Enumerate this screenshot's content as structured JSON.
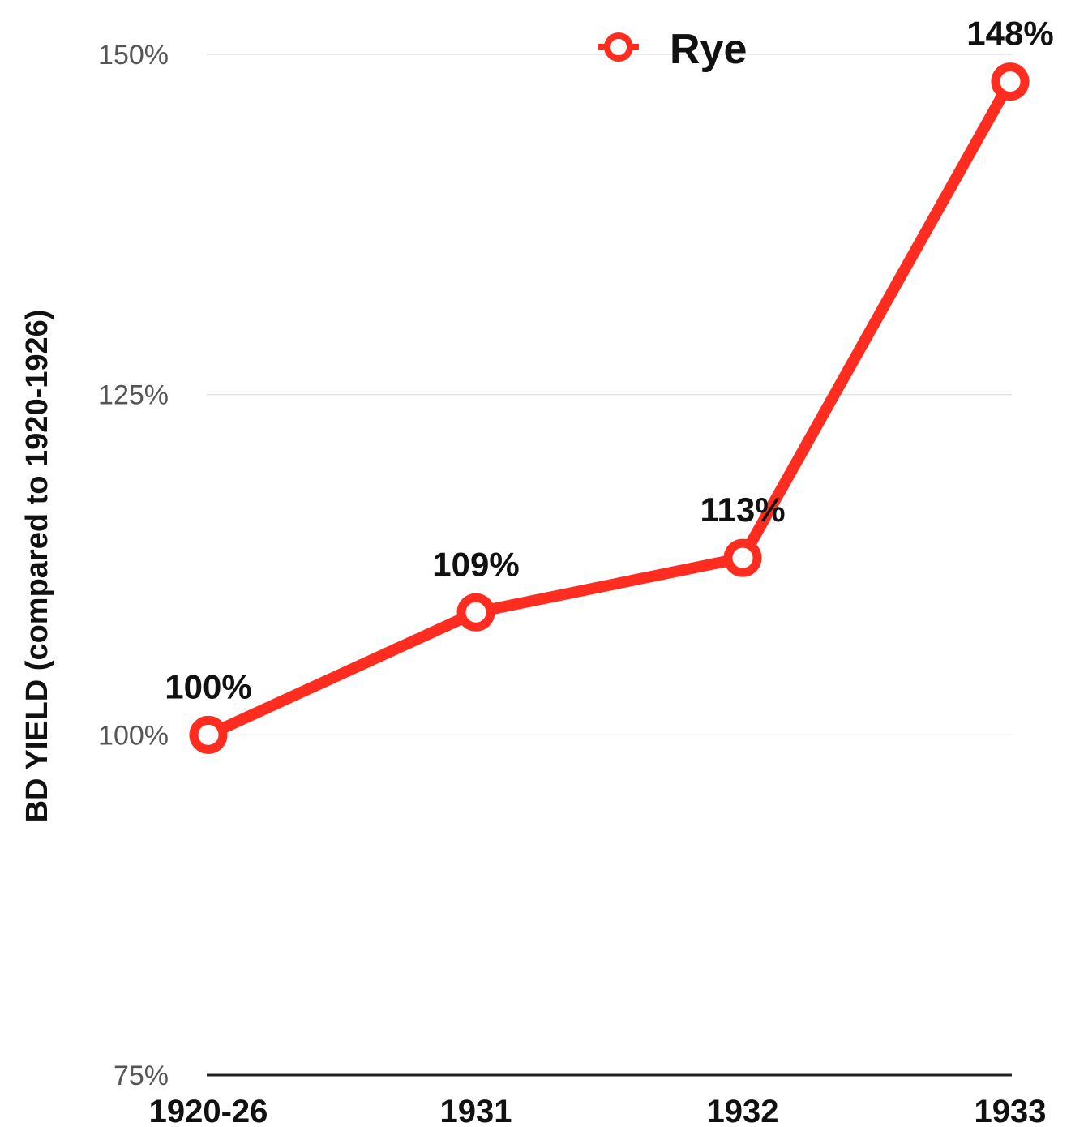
{
  "chart_data": {
    "type": "line",
    "categories": [
      "1920-26",
      "1931",
      "1932",
      "1933"
    ],
    "series": [
      {
        "name": "Rye",
        "values": [
          100,
          109,
          113,
          148
        ],
        "color": "#ff2d20"
      }
    ],
    "data_labels": [
      "100%",
      "109%",
      "113%",
      "148%"
    ],
    "ylabel": "BD YIELD (compared to 1920-1926)",
    "ylim": [
      75,
      150
    ],
    "yticks": [
      75,
      100,
      125,
      150
    ],
    "ytick_labels": [
      "75%",
      "100%",
      "125%",
      "150%"
    ],
    "grid": true,
    "legend": "top-center"
  }
}
